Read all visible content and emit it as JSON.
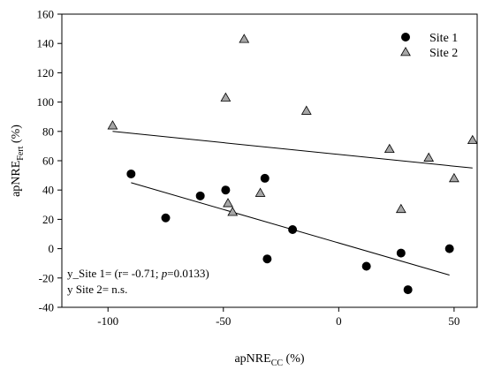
{
  "chart_data": {
    "type": "scatter",
    "xlabel": {
      "main": "apNRE",
      "sub": "CC",
      "suffix": " (%)"
    },
    "ylabel": {
      "main": "apNRE",
      "sub": "Fert",
      "suffix": " (%)"
    },
    "xlim": [
      -120,
      60
    ],
    "ylim": [
      -40,
      160
    ],
    "xticks": [
      -100,
      -50,
      0,
      50
    ],
    "yticks": [
      -40,
      -20,
      0,
      20,
      40,
      60,
      80,
      100,
      120,
      140,
      160
    ],
    "grid": false,
    "legend_position": "top-right",
    "series": [
      {
        "name": "Site 1",
        "marker": "circle",
        "color": "#000000",
        "points": [
          {
            "x": -90,
            "y": 51
          },
          {
            "x": -75,
            "y": 21
          },
          {
            "x": -60,
            "y": 36
          },
          {
            "x": -49,
            "y": 40
          },
          {
            "x": -32,
            "y": 48
          },
          {
            "x": -31,
            "y": -7
          },
          {
            "x": -20,
            "y": 13
          },
          {
            "x": 12,
            "y": -12
          },
          {
            "x": 27,
            "y": -3
          },
          {
            "x": 30,
            "y": -28
          },
          {
            "x": 48,
            "y": 0
          }
        ],
        "trendline": {
          "x": [
            -90,
            48
          ],
          "y": [
            45,
            -18
          ]
        }
      },
      {
        "name": "Site 2",
        "marker": "triangle",
        "color": "#a6a6a6",
        "points": [
          {
            "x": -98,
            "y": 84
          },
          {
            "x": -49,
            "y": 103
          },
          {
            "x": -41,
            "y": 143
          },
          {
            "x": -48,
            "y": 31
          },
          {
            "x": -46,
            "y": 25
          },
          {
            "x": -34,
            "y": 38
          },
          {
            "x": -14,
            "y": 94
          },
          {
            "x": 22,
            "y": 68
          },
          {
            "x": 27,
            "y": 27
          },
          {
            "x": 39,
            "y": 62
          },
          {
            "x": 50,
            "y": 48
          },
          {
            "x": 58,
            "y": 74
          }
        ],
        "trendline": {
          "x": [
            -98,
            58
          ],
          "y": [
            80,
            55
          ]
        }
      }
    ],
    "annotations": [
      {
        "parts": [
          {
            "text": "y_Site 1= (r= -0.71; ",
            "italic": false
          },
          {
            "text": "p",
            "italic": true
          },
          {
            "text": "=0.0133)",
            "italic": false
          }
        ]
      },
      {
        "parts": [
          {
            "text": "y Site 2= n.s.",
            "italic": false
          }
        ]
      }
    ]
  }
}
